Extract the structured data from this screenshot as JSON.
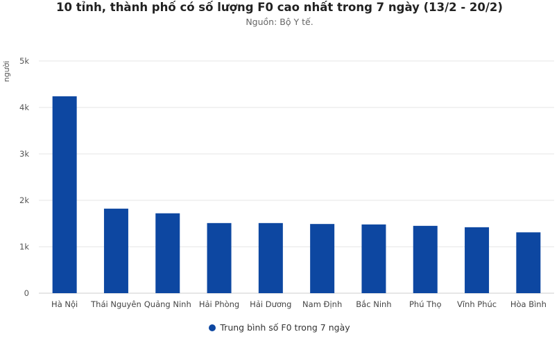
{
  "chart_data": {
    "type": "bar",
    "title": "10 tỉnh, thành phố có số lượng F0 cao nhất trong 7 ngày (13/2 - 20/2)",
    "subtitle": "Nguồn: Bộ Y tế.",
    "ylabel": "người",
    "xlabel": "",
    "ylim": [
      0,
      5000
    ],
    "yticks": [
      0,
      1000,
      2000,
      3000,
      4000,
      5000
    ],
    "ytick_labels": [
      "0",
      "1k",
      "2k",
      "3k",
      "4k",
      "5k"
    ],
    "grid": true,
    "legend_position": "bottom",
    "categories": [
      "Hà Nội",
      "Thái Nguyên",
      "Quảng Ninh",
      "Hải Phòng",
      "Hải Dương",
      "Nam Định",
      "Bắc Ninh",
      "Phú Thọ",
      "Vĩnh Phúc",
      "Hòa Bình"
    ],
    "series": [
      {
        "name": "Trung bình số F0 trong 7 ngày",
        "color": "#0d47a1",
        "values": [
          4240,
          1820,
          1720,
          1510,
          1510,
          1490,
          1480,
          1450,
          1420,
          1310
        ]
      }
    ]
  }
}
